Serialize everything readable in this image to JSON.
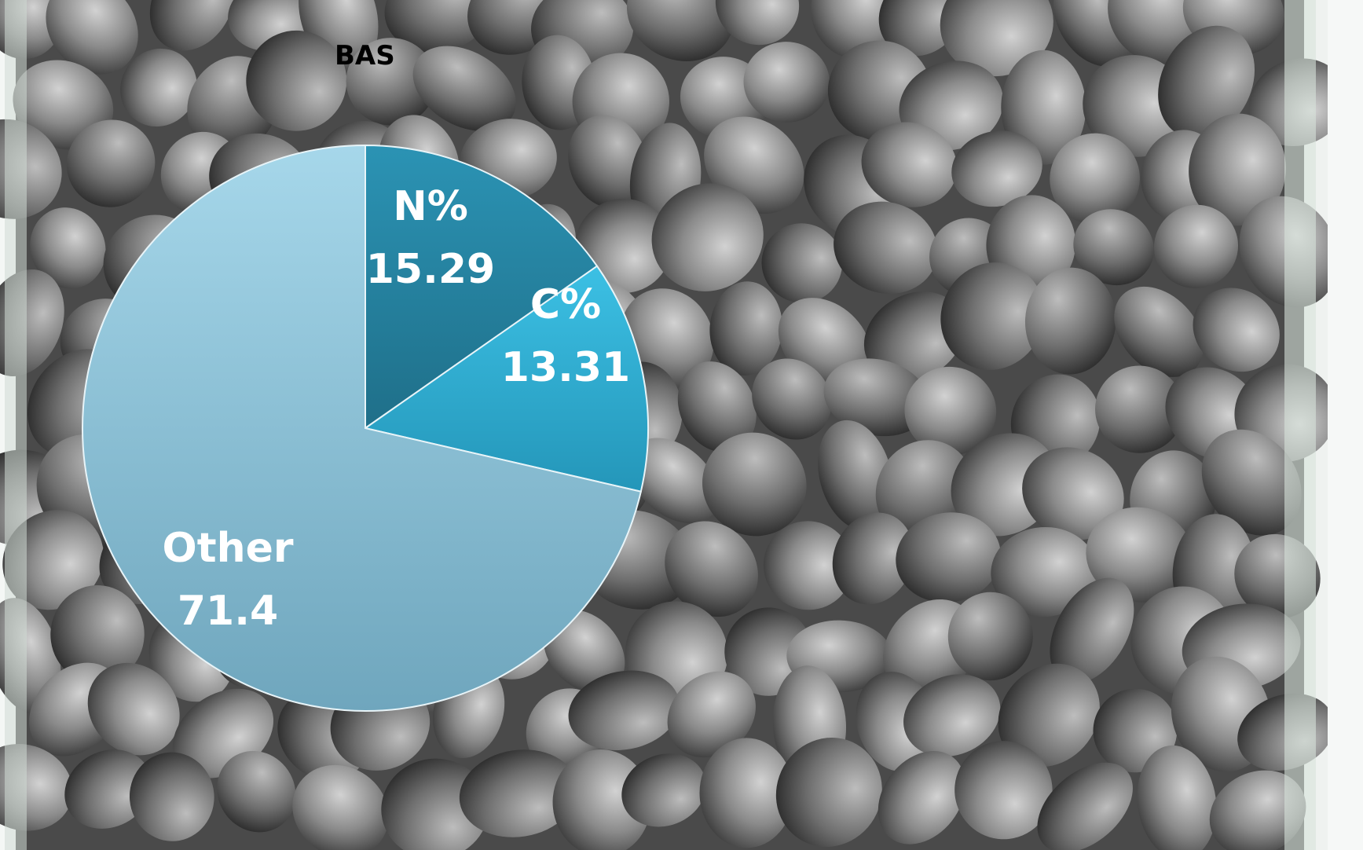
{
  "chart_data": {
    "type": "pie",
    "title": "BAS",
    "slices": [
      {
        "label": "N%",
        "value": 15.29,
        "color": "#2a8fb0"
      },
      {
        "label": "C%",
        "value": 13.31,
        "color": "#34b3d8"
      },
      {
        "label": "Other",
        "value": 71.4,
        "color": "#8fc5db"
      }
    ],
    "start": "12 o'clock",
    "direction": "clockwise",
    "legend": "none (labels on slices)"
  },
  "background": {
    "subject": "grey granules in a glass dish",
    "colors": {
      "granule": "#7d7d7d",
      "granule_light": "#a9a9a9",
      "dark": "#3f3f3f",
      "glass": "#dfe9e2"
    }
  }
}
